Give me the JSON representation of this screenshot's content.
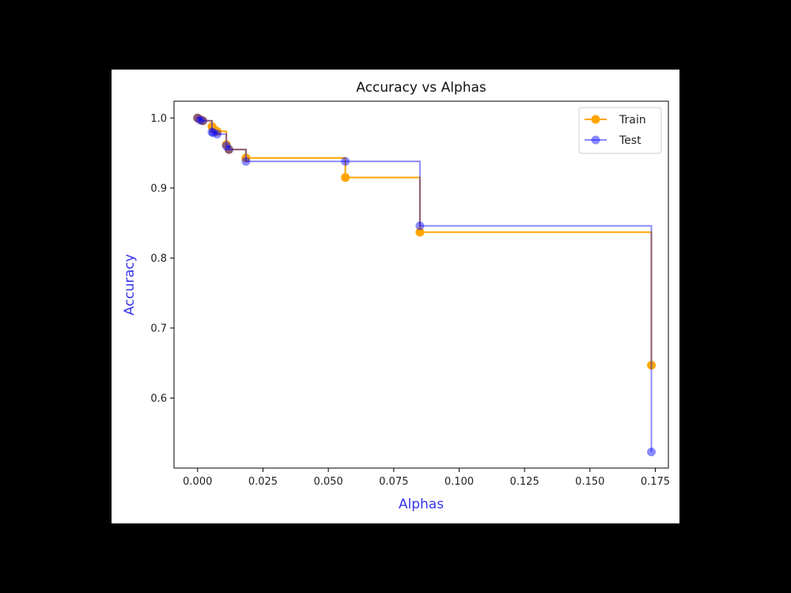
{
  "chart_data": {
    "type": "line",
    "title": "Accuracy vs Alphas",
    "xlabel": "Alphas",
    "ylabel": "Accuracy",
    "label_color": "#3333ee",
    "drawstyle": "steps-post",
    "xlim": [
      -0.009,
      0.18
    ],
    "ylim": [
      0.5,
      1.024
    ],
    "xticks": [
      0.0,
      0.025,
      0.05,
      0.075,
      0.1,
      0.125,
      0.15,
      0.175
    ],
    "xtick_labels": [
      "0.000",
      "0.025",
      "0.050",
      "0.075",
      "0.100",
      "0.125",
      "0.150",
      "0.175"
    ],
    "yticks": [
      0.6,
      0.7,
      0.8,
      0.9,
      1.0
    ],
    "ytick_labels": [
      "0.6",
      "0.7",
      "0.8",
      "0.9",
      "1.0"
    ],
    "legend_position": "upper right",
    "grid": false,
    "series": [
      {
        "name": "Train",
        "color": "#ffa500",
        "alpha": 1.0,
        "x": [
          0.0,
          0.001,
          0.002,
          0.0055,
          0.006,
          0.0075,
          0.011,
          0.012,
          0.0185,
          0.0565,
          0.085,
          0.1735
        ],
        "y": [
          1.0,
          0.998,
          0.996,
          0.988,
          0.985,
          0.981,
          0.962,
          0.955,
          0.943,
          0.915,
          0.837,
          0.647
        ]
      },
      {
        "name": "Test",
        "color": "#0000ff",
        "alpha": 0.45,
        "x": [
          0.0,
          0.001,
          0.002,
          0.0055,
          0.006,
          0.0075,
          0.011,
          0.012,
          0.0185,
          0.0565,
          0.085,
          0.1735
        ],
        "y": [
          1.0,
          0.997,
          0.996,
          0.98,
          0.979,
          0.977,
          0.96,
          0.955,
          0.938,
          0.938,
          0.846,
          0.523
        ]
      }
    ]
  }
}
